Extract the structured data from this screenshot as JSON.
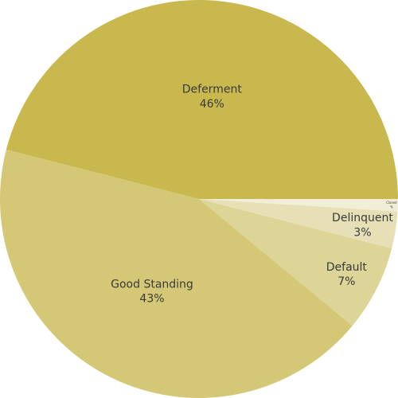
{
  "chart_data": {
    "type": "pie",
    "categories": [
      "Closed",
      "Delinquent",
      "Default",
      "Good Standing",
      "Deferment"
    ],
    "values": [
      1,
      3,
      7,
      43,
      46
    ],
    "value_labels": [
      "%",
      "3%",
      "7%",
      "43%",
      "46%"
    ],
    "colors": [
      "#f1edd6",
      "#e7e0b6",
      "#ddd497",
      "#d4c876",
      "#c8b84e"
    ]
  }
}
